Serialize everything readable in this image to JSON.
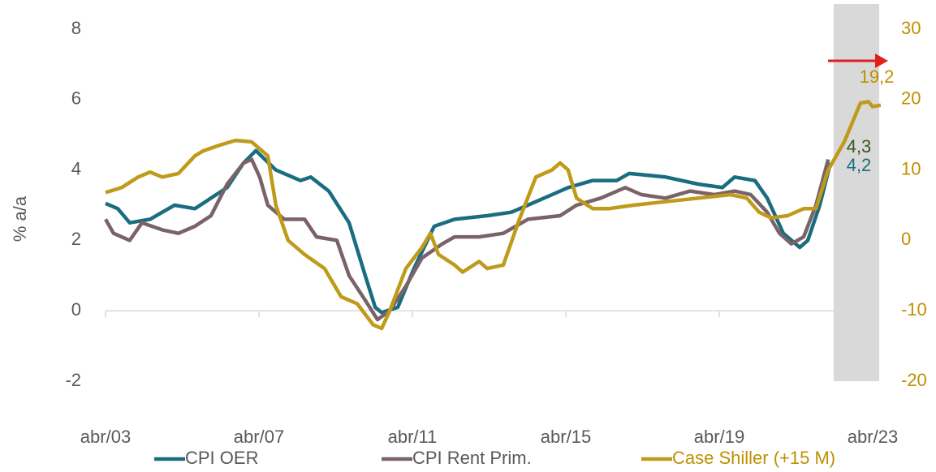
{
  "chart_data": {
    "type": "line",
    "y_label": "% a/a",
    "xlim": [
      2003.25,
      2023.25
    ],
    "xticks": [
      {
        "value": 2003.25,
        "label": "abr/03"
      },
      {
        "value": 2007.25,
        "label": "abr/07"
      },
      {
        "value": 2011.25,
        "label": "abr/11"
      },
      {
        "value": 2015.25,
        "label": "abr/15"
      },
      {
        "value": 2019.25,
        "label": "abr/19"
      },
      {
        "value": 2023.25,
        "label": "abr/23"
      }
    ],
    "ylim": [
      -2,
      8
    ],
    "yticks": [
      -2,
      0,
      2,
      4,
      6,
      8
    ],
    "y2lim": [
      -20,
      30
    ],
    "y2ticks": [
      -20,
      -10,
      0,
      10,
      20,
      30
    ],
    "y2_color": "#bf9000",
    "shade_x": [
      2022.23,
      2023.42
    ],
    "shade_color": "#d9d9d9",
    "legend": "bottom",
    "series": [
      {
        "name": "CPI OER",
        "color": "#1a6d80",
        "x": [
          2003.25,
          2003.57,
          2003.88,
          2004.41,
          2004.73,
          2005.05,
          2005.58,
          2006.0,
          2006.42,
          2006.85,
          2007.17,
          2007.69,
          2008.33,
          2008.6,
          2009.07,
          2009.6,
          2010.02,
          2010.28,
          2010.45,
          2010.87,
          2011.29,
          2011.82,
          2012.35,
          2013.2,
          2013.83,
          2014.26,
          2014.89,
          2015.31,
          2015.95,
          2016.58,
          2016.9,
          2017.85,
          2018.7,
          2019.33,
          2019.65,
          2020.18,
          2020.5,
          2020.92,
          2021.35,
          2021.56,
          2021.87,
          2022.15
        ],
        "values": [
          3.05,
          2.9,
          2.5,
          2.6,
          2.8,
          3.0,
          2.9,
          3.2,
          3.5,
          4.2,
          4.55,
          4.0,
          3.7,
          3.8,
          3.4,
          2.5,
          1.0,
          0.1,
          -0.05,
          0.1,
          1.2,
          2.4,
          2.6,
          2.7,
          2.8,
          3.0,
          3.3,
          3.5,
          3.7,
          3.7,
          3.9,
          3.8,
          3.6,
          3.5,
          3.8,
          3.7,
          3.2,
          2.2,
          1.8,
          2.0,
          3.0,
          4.2
        ]
      },
      {
        "name": "CPI Rent Prim.",
        "color": "#7a6368",
        "x": [
          2003.25,
          2003.46,
          2003.88,
          2004.2,
          2004.73,
          2005.15,
          2005.58,
          2006.0,
          2006.42,
          2006.85,
          2007.06,
          2007.27,
          2007.48,
          2007.91,
          2008.44,
          2008.75,
          2009.28,
          2009.6,
          2010.02,
          2010.34,
          2010.66,
          2011.08,
          2011.5,
          2012.03,
          2012.35,
          2012.99,
          2013.62,
          2014.26,
          2015.1,
          2015.53,
          2016.16,
          2016.8,
          2017.22,
          2017.85,
          2018.49,
          2019.12,
          2019.65,
          2020.07,
          2020.5,
          2020.82,
          2021.13,
          2021.45,
          2021.77,
          2022.09
        ],
        "values": [
          2.6,
          2.2,
          2.0,
          2.5,
          2.3,
          2.2,
          2.4,
          2.7,
          3.6,
          4.2,
          4.3,
          3.8,
          3.0,
          2.6,
          2.6,
          2.1,
          2.0,
          1.0,
          0.3,
          -0.25,
          0.0,
          0.7,
          1.5,
          1.9,
          2.1,
          2.1,
          2.2,
          2.6,
          2.7,
          3.0,
          3.2,
          3.5,
          3.3,
          3.2,
          3.4,
          3.3,
          3.4,
          3.3,
          2.8,
          2.2,
          1.9,
          2.1,
          3.0,
          4.3
        ]
      },
      {
        "name": "Case Shiller (+15 M)",
        "color": "#c09a1a",
        "axis": "y2",
        "x": [
          2003.25,
          2003.67,
          2004.1,
          2004.41,
          2004.73,
          2005.15,
          2005.58,
          2005.79,
          2006.21,
          2006.64,
          2007.06,
          2007.48,
          2007.69,
          2008.01,
          2008.44,
          2008.96,
          2009.39,
          2009.81,
          2010.23,
          2010.45,
          2010.66,
          2011.08,
          2011.5,
          2011.72,
          2011.93,
          2012.35,
          2012.56,
          2012.99,
          2013.2,
          2013.62,
          2014.04,
          2014.47,
          2014.89,
          2015.1,
          2015.31,
          2015.53,
          2015.95,
          2016.37,
          2017.01,
          2017.85,
          2018.7,
          2019.55,
          2019.97,
          2020.29,
          2020.6,
          2021.03,
          2021.45,
          2021.77,
          2022.09,
          2022.51,
          2022.93,
          2023.14,
          2023.25,
          2023.46
        ],
        "values": [
          6.8,
          7.5,
          9.0,
          9.7,
          9.0,
          9.5,
          12.0,
          12.7,
          13.5,
          14.2,
          14.0,
          12.0,
          5.0,
          0.0,
          -2.0,
          -4.0,
          -8.0,
          -9.0,
          -12.0,
          -12.5,
          -10.0,
          -4.0,
          -1.0,
          1.0,
          -2.0,
          -3.5,
          -4.5,
          -3.0,
          -4.0,
          -3.5,
          3.0,
          9.0,
          10.0,
          11.0,
          10.0,
          6.0,
          4.5,
          4.5,
          5.0,
          5.5,
          6.0,
          6.5,
          6.0,
          4.0,
          3.2,
          3.5,
          4.5,
          4.5,
          10.0,
          14.0,
          19.5,
          19.7,
          19.0,
          19.2
        ]
      }
    ],
    "annotations": [
      {
        "text": "19,2",
        "color": "#bf9000"
      },
      {
        "text": "4,3",
        "color": "#375623"
      },
      {
        "text": "4,2",
        "color": "#1a6d80"
      }
    ]
  }
}
